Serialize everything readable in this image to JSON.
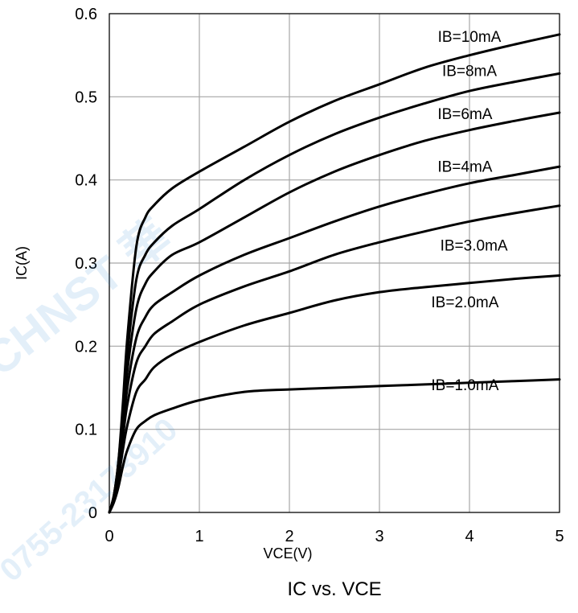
{
  "chart_data": {
    "type": "line",
    "title": "IC vs. VCE",
    "xlabel": "VCE(V)",
    "ylabel": "IC(A)",
    "xlim": [
      0,
      5
    ],
    "ylim": [
      0,
      0.6
    ],
    "xticks": [
      "0",
      "1",
      "2",
      "3",
      "4",
      "5"
    ],
    "yticks": [
      "0",
      "0.1",
      "0.2",
      "0.3",
      "0.4",
      "0.5",
      "0.6"
    ],
    "grid": true,
    "legend": "inline labels",
    "line_color": "#000000",
    "grid_color": "#a6a6a6",
    "x": [
      0,
      0.05,
      0.1,
      0.15,
      0.2,
      0.3,
      0.4,
      0.5,
      0.7,
      1.0,
      1.5,
      2.0,
      2.5,
      3.0,
      3.5,
      4.0,
      4.5,
      5.0
    ],
    "series": [
      {
        "name": "IB=10mA",
        "label_at": [
          4.0,
          0.566
        ],
        "values": [
          0,
          0.02,
          0.06,
          0.13,
          0.21,
          0.32,
          0.355,
          0.37,
          0.39,
          0.41,
          0.44,
          0.47,
          0.495,
          0.515,
          0.535,
          0.55,
          0.563,
          0.575
        ]
      },
      {
        "name": "IB=8mA",
        "label_at": [
          4.0,
          0.525
        ],
        "values": [
          0,
          0.02,
          0.06,
          0.12,
          0.19,
          0.28,
          0.31,
          0.325,
          0.345,
          0.365,
          0.4,
          0.43,
          0.455,
          0.475,
          0.492,
          0.507,
          0.518,
          0.528
        ]
      },
      {
        "name": "IB=6mA",
        "label_at": [
          3.95,
          0.473
        ],
        "values": [
          0,
          0.02,
          0.055,
          0.11,
          0.17,
          0.245,
          0.275,
          0.29,
          0.31,
          0.325,
          0.355,
          0.385,
          0.41,
          0.43,
          0.447,
          0.46,
          0.471,
          0.481
        ]
      },
      {
        "name": "IB=4mA",
        "label_at": [
          3.95,
          0.41
        ],
        "values": [
          0,
          0.018,
          0.05,
          0.1,
          0.15,
          0.21,
          0.235,
          0.25,
          0.265,
          0.285,
          0.31,
          0.33,
          0.35,
          0.368,
          0.383,
          0.396,
          0.406,
          0.416
        ]
      },
      {
        "name": "IB=3.0mA",
        "label_at": [
          4.05,
          0.315
        ],
        "values": [
          0,
          0.016,
          0.045,
          0.09,
          0.13,
          0.18,
          0.2,
          0.215,
          0.23,
          0.25,
          0.272,
          0.29,
          0.31,
          0.325,
          0.338,
          0.35,
          0.36,
          0.369
        ]
      },
      {
        "name": "IB=2.0mA",
        "label_at": [
          3.95,
          0.247
        ],
        "values": [
          0,
          0.014,
          0.04,
          0.075,
          0.105,
          0.145,
          0.16,
          0.175,
          0.19,
          0.205,
          0.225,
          0.24,
          0.255,
          0.265,
          0.271,
          0.276,
          0.281,
          0.285
        ]
      },
      {
        "name": "IB=1.0mA",
        "label_at": [
          3.95,
          0.147
        ],
        "values": [
          0,
          0.012,
          0.03,
          0.055,
          0.075,
          0.1,
          0.11,
          0.117,
          0.125,
          0.135,
          0.145,
          0.148,
          0.15,
          0.152,
          0.154,
          0.156,
          0.158,
          0.16
        ]
      }
    ]
  },
  "watermark": {
    "brand_text": "CHNST 華",
    "phone_text": "0755-23173910",
    "color": "#2f8bd8"
  }
}
